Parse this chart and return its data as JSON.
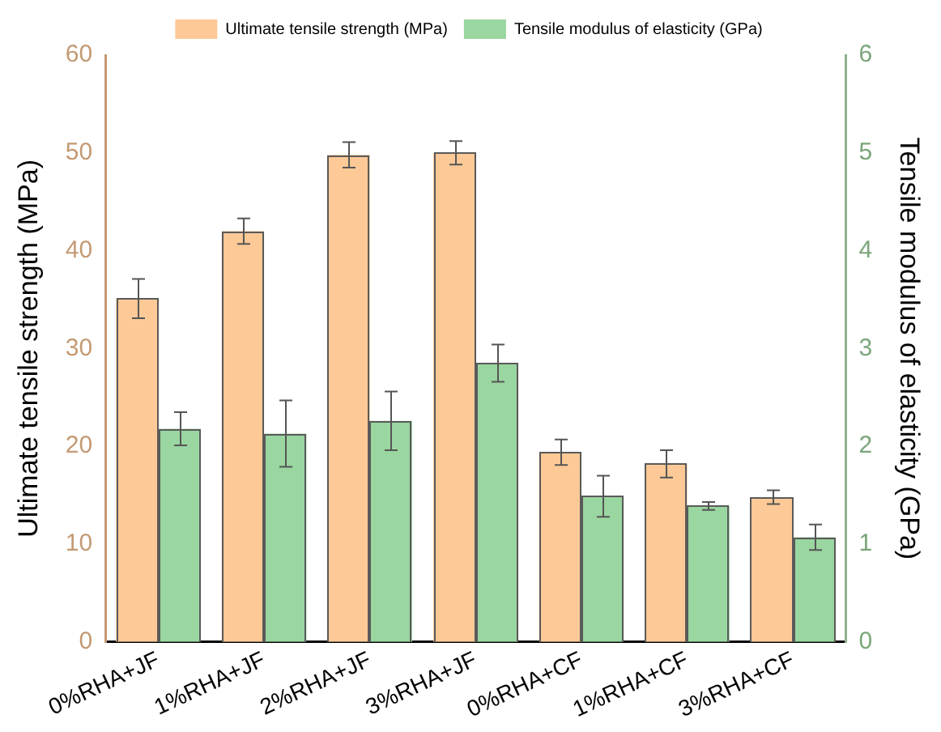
{
  "chart_data": {
    "type": "bar",
    "ylabel": "Ultimate tensile strength (MPa)",
    "y2label": "Tensile modulus of elasticity (GPa)",
    "categories": [
      "0%RHA+JF",
      "1%RHA+JF",
      "2%RHA+JF",
      "3%RHA+JF",
      "0%RHA+CF",
      "1%RHA+CF",
      "3%RHA+CF"
    ],
    "series": [
      {
        "name": "Ultimate tensile strength (MPa)",
        "color": "#fdc996",
        "values": [
          35.1,
          42.0,
          49.8,
          50.0,
          19.4,
          18.2,
          14.8
        ],
        "errors": [
          2.0,
          1.3,
          1.3,
          1.2,
          1.3,
          1.4,
          0.7
        ]
      },
      {
        "name": "Tensile modulus of elasticity (GPa)",
        "color": "#9ad6a0",
        "axis": "y2",
        "values": [
          2.18,
          2.13,
          2.26,
          2.85,
          1.49,
          1.39,
          1.07
        ],
        "errors": [
          0.17,
          0.34,
          0.3,
          0.19,
          0.21,
          0.04,
          0.13
        ]
      }
    ],
    "ylim": [
      0,
      60
    ],
    "yticks": [
      0,
      10,
      20,
      30,
      40,
      50,
      60
    ],
    "y2lim": [
      0,
      6
    ],
    "y2ticks": [
      0,
      1,
      2,
      3,
      4,
      5,
      6
    ],
    "grid": false,
    "legend": "top"
  }
}
